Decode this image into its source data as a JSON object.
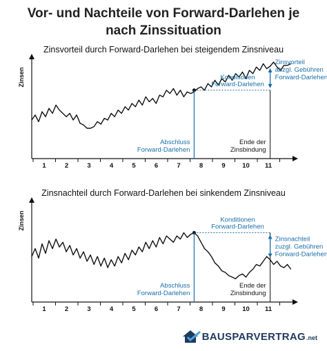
{
  "title_line1": "Vor- und Nachteile von Forward-Darlehen je",
  "title_line2": "nach Zinssituation",
  "colors": {
    "line": "#111111",
    "accent": "#1a6fa8",
    "grid": "#111111"
  },
  "chart_data": [
    {
      "type": "line",
      "title": "Zinsvorteil durch Forward-Darlehen bei steigendem Zinsniveau",
      "ylabel": "Zinsen",
      "xlabel": "",
      "x_ticks": [
        "1",
        "2",
        "3",
        "4",
        "5",
        "6",
        "7",
        "8",
        "9",
        "10",
        "11"
      ],
      "xlim": [
        0.5,
        12
      ],
      "ylim": [
        0,
        100
      ],
      "series": [
        {
          "x": [
            0.5,
            0.65,
            0.8,
            0.95,
            1.1,
            1.25,
            1.4,
            1.55,
            1.7,
            1.85,
            2.0,
            2.15,
            2.3,
            2.45,
            2.6,
            2.75,
            2.9,
            3.05,
            3.2,
            3.35,
            3.5,
            3.65,
            3.8,
            3.95,
            4.1,
            4.25,
            4.4,
            4.55,
            4.7,
            4.85,
            5.0,
            5.15,
            5.3,
            5.45,
            5.6,
            5.75,
            5.9,
            6.05,
            6.2,
            6.35,
            6.5,
            6.65,
            6.8,
            6.95,
            7.1,
            7.25,
            7.4,
            7.55,
            7.7,
            7.85,
            8.0,
            8.15,
            8.3,
            8.45,
            8.6,
            8.75,
            8.9,
            9.05,
            9.2,
            9.35,
            9.5,
            9.65,
            9.8,
            9.95,
            10.1,
            10.25,
            10.4,
            10.55,
            10.7,
            10.85,
            11.0,
            11.15,
            11.3,
            11.45,
            11.6,
            11.75
          ],
          "values": [
            30,
            36,
            28,
            40,
            34,
            44,
            38,
            48,
            42,
            38,
            34,
            38,
            30,
            36,
            26,
            24,
            20,
            20,
            22,
            28,
            25,
            32,
            30,
            38,
            34,
            42,
            38,
            46,
            42,
            50,
            46,
            54,
            48,
            58,
            52,
            56,
            50,
            60,
            58,
            66,
            62,
            68,
            60,
            66,
            58,
            64,
            62,
            64,
            68,
            70,
            66,
            74,
            70,
            78,
            72,
            80,
            76,
            84,
            78,
            86,
            82,
            88,
            80,
            90,
            86,
            94,
            90,
            98,
            92,
            95,
            100,
            94,
            90,
            96,
            96,
            98
          ]
        }
      ],
      "labels": {
        "contract": "Abschluss\nForward-Darlehen",
        "conditions": "Konditionen\nForward-Darlehen",
        "end": "Ende der\nZinsbindung",
        "advantage": "Zinsvorteil\nabzgl. Gebühren\nForward-Darlehen"
      },
      "contract_x": 7.55,
      "end_x": 10.85,
      "conditions_y": 66
    },
    {
      "type": "line",
      "title": "Zinsnachteil durch Forward-Darlehen bei sinkendem Zinsniveau",
      "ylabel": "Zinsen",
      "xlabel": "",
      "x_ticks": [
        "1",
        "2",
        "3",
        "4",
        "5",
        "6",
        "7",
        "8",
        "9",
        "10",
        "11"
      ],
      "xlim": [
        0.5,
        12
      ],
      "ylim": [
        0,
        100
      ],
      "series": [
        {
          "x": [
            0.5,
            0.65,
            0.8,
            0.95,
            1.1,
            1.25,
            1.4,
            1.55,
            1.7,
            1.85,
            2.0,
            2.15,
            2.3,
            2.45,
            2.6,
            2.75,
            2.9,
            3.05,
            3.2,
            3.35,
            3.5,
            3.65,
            3.8,
            3.95,
            4.1,
            4.25,
            4.4,
            4.55,
            4.7,
            4.85,
            5.0,
            5.15,
            5.3,
            5.45,
            5.6,
            5.75,
            5.9,
            6.05,
            6.2,
            6.35,
            6.5,
            6.65,
            6.8,
            6.95,
            7.1,
            7.25,
            7.4,
            7.55,
            7.7,
            7.85,
            8.0,
            8.15,
            8.3,
            8.45,
            8.6,
            8.75,
            8.9,
            9.05,
            9.2,
            9.35,
            9.5,
            9.65,
            9.8,
            9.95,
            10.1,
            10.25,
            10.4,
            10.55,
            10.7,
            10.85,
            11.0,
            11.15,
            11.3,
            11.45,
            11.6,
            11.75
          ],
          "values": [
            40,
            50,
            38,
            56,
            44,
            60,
            50,
            62,
            52,
            58,
            46,
            54,
            42,
            50,
            38,
            46,
            34,
            42,
            30,
            40,
            28,
            38,
            26,
            36,
            28,
            40,
            32,
            44,
            36,
            48,
            42,
            52,
            46,
            58,
            50,
            60,
            52,
            64,
            56,
            66,
            62,
            58,
            66,
            62,
            70,
            64,
            68,
            70,
            66,
            58,
            50,
            46,
            40,
            32,
            28,
            22,
            20,
            16,
            14,
            12,
            16,
            18,
            14,
            20,
            24,
            30,
            28,
            34,
            40,
            36,
            30,
            34,
            28,
            26,
            30,
            24
          ]
        }
      ],
      "labels": {
        "contract": "Abschluss\nForward-Darlehen",
        "conditions": "Konditionen\nForward-Darlehen",
        "end": "Ende der\nZinsbindung",
        "advantage": "Zinsnachteil\nzuzgl. Gebühren\nForward-Darlehen"
      },
      "contract_x": 7.55,
      "end_x": 10.85,
      "conditions_y": 70
    }
  ],
  "logo": {
    "text": "BAUSPARVERTRAG",
    "suffix": ".net",
    "icon": "house-check-icon"
  }
}
